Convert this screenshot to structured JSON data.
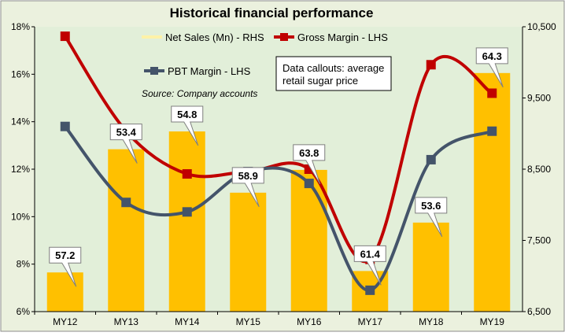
{
  "chart_data": {
    "type": "bar",
    "title": "Historical financial performance",
    "source": "Source: Company accounts",
    "callout_note": [
      "Data callouts: average",
      "retail sugar price"
    ],
    "categories": [
      "MY12",
      "MY13",
      "MY14",
      "MY15",
      "MY16",
      "MY17",
      "MY18",
      "MY19"
    ],
    "series": [
      {
        "name": "Net Sales (Mn) - RHS",
        "kind": "bar",
        "axis": "right",
        "color": "#ffc000",
        "values": [
          7050,
          8780,
          9030,
          8170,
          8490,
          7070,
          7750,
          9850
        ],
        "callouts": [
          "57.2",
          "53.4",
          "54.8",
          "58.9",
          "63.8",
          "61.4",
          "53.6",
          "64.3"
        ]
      },
      {
        "name": "Gross Margin - LHS",
        "kind": "line",
        "axis": "left",
        "color": "#c00000",
        "values": [
          17.6,
          13.6,
          11.8,
          11.9,
          12.0,
          8.2,
          16.4,
          15.2
        ]
      },
      {
        "name": "PBT Margin - LHS",
        "kind": "line",
        "axis": "left",
        "color": "#44546a",
        "values": [
          13.8,
          10.6,
          10.2,
          11.9,
          11.4,
          6.9,
          12.4,
          13.6
        ]
      }
    ],
    "y_left": {
      "min": 6,
      "max": 18,
      "ticks": [
        6,
        8,
        10,
        12,
        14,
        16,
        18
      ],
      "tick_labels": [
        "6%",
        "8%",
        "10%",
        "12%",
        "14%",
        "16%",
        "18%"
      ]
    },
    "y_right": {
      "min": 6500,
      "max": 10500,
      "ticks": [
        6500,
        7500,
        8500,
        9500,
        10500
      ],
      "tick_labels": [
        "6,500",
        "7,500",
        "8,500",
        "9,500",
        "10,500"
      ]
    },
    "grid": false,
    "legend": "top, inside plot",
    "colors": {
      "background": "#ebf1de",
      "plot_background": "#e2efd9",
      "bar": "#ffc000",
      "gross_margin": "#c00000",
      "pbt_margin": "#44546a"
    }
  }
}
